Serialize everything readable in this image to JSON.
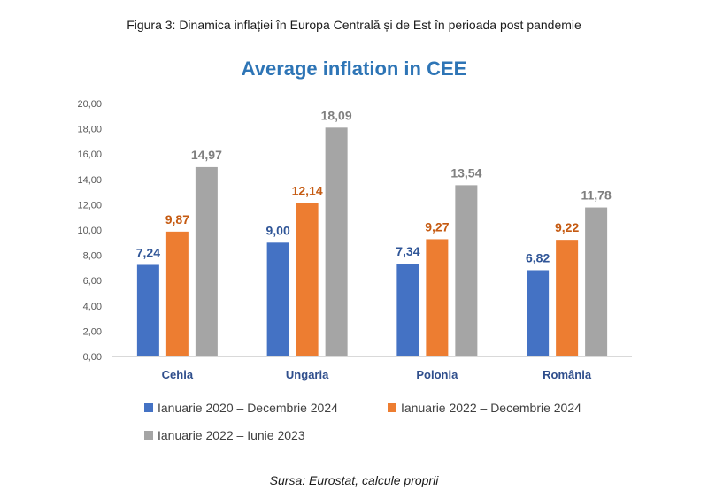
{
  "figure_caption": "Figura 3: Dinamica inflației în Europa Centrală și de Est în perioada post pandemie",
  "source": "Sursa: Eurostat, calcule proprii",
  "chart_data": {
    "type": "bar",
    "title": "Average inflation in CEE",
    "xlabel": "",
    "ylabel": "",
    "ylim": [
      0,
      20
    ],
    "yticks": [
      "0,00",
      "2,00",
      "4,00",
      "6,00",
      "8,00",
      "10,00",
      "12,00",
      "14,00",
      "16,00",
      "18,00",
      "20,00"
    ],
    "grid": false,
    "legend_position": "bottom",
    "categories": [
      "Cehia",
      "Ungaria",
      "Polonia",
      "România"
    ],
    "series": [
      {
        "name": "Ianuarie 2020 – Decembrie 2024",
        "color": "#4472C4",
        "label_color": "#2F5597",
        "values": [
          7.24,
          9.0,
          7.34,
          6.82
        ],
        "labels": [
          "7,24",
          "9,00",
          "7,34",
          "6,82"
        ]
      },
      {
        "name": "Ianuarie 2022 – Decembrie 2024",
        "color": "#ED7D31",
        "label_color": "#C55A11",
        "values": [
          9.87,
          12.14,
          9.27,
          9.22
        ],
        "labels": [
          "9,87",
          "12,14",
          "9,27",
          "9,22"
        ]
      },
      {
        "name": "Ianuarie 2022 – Iunie 2023",
        "color": "#A5A5A5",
        "label_color": "#7F7F7F",
        "values": [
          14.97,
          18.09,
          13.54,
          11.78
        ],
        "labels": [
          "14,97",
          "18,09",
          "13,54",
          "11,78"
        ]
      }
    ]
  }
}
